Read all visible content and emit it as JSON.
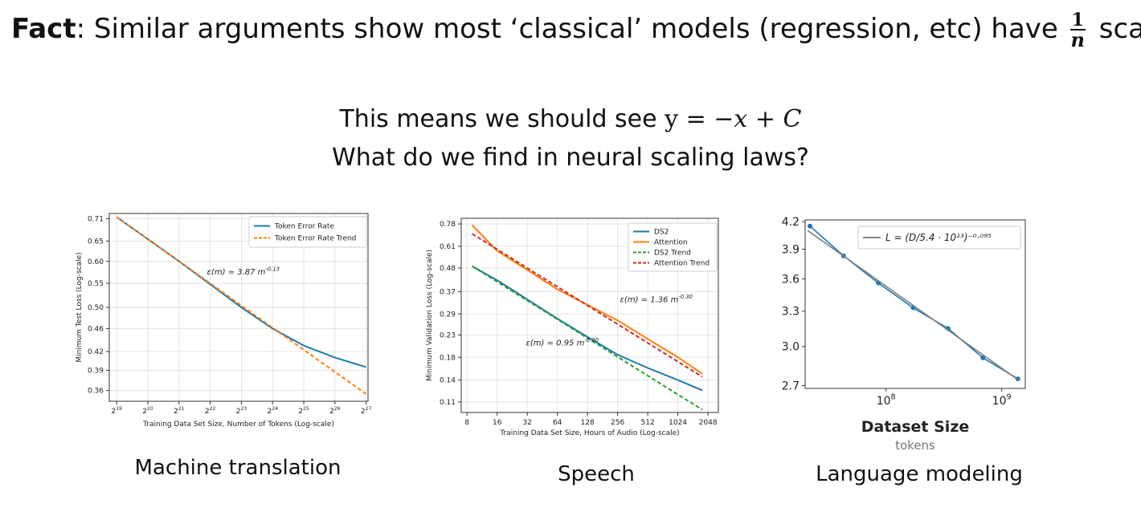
{
  "slide": {
    "fact_label": "Fact",
    "fact_text": ": Similar arguments show most ‘classical’ models (regression, etc) have ",
    "frac_num": "1",
    "frac_den": "n",
    "fact_tail": " scaling",
    "line1_text": "This means we should see ",
    "line1_math": "y = −",
    "line1_x": "x",
    "line1_plus": " + ",
    "line1_c": "C",
    "line2": "What do we find in neural scaling laws?"
  },
  "captions": [
    "Machine translation",
    "Speech",
    "Language modeling"
  ],
  "chart_data": [
    {
      "type": "line",
      "x_scale": "log2",
      "y_scale": "log",
      "xlabel": "Training Data Set Size, Number of Tokens (Log-scale)",
      "ylabel": "Minimum Test Loss (Log-scale)",
      "xlim": [
        445000,
        140000000
      ],
      "ylim": [
        0.345,
        0.725
      ],
      "grid": true,
      "legend": "top-right",
      "x_ticks": [
        524288,
        1048576,
        2097152,
        4194304,
        8388608,
        16777216,
        33554432,
        67108864,
        134217728
      ],
      "x_tick_labels": [
        [
          "2",
          "19"
        ],
        [
          "2",
          "20"
        ],
        [
          "2",
          "21"
        ],
        [
          "2",
          "22"
        ],
        [
          "2",
          "23"
        ],
        [
          "2",
          "24"
        ],
        [
          "2",
          "25"
        ],
        [
          "2",
          "26"
        ],
        [
          "2",
          "27"
        ]
      ],
      "y_ticks": [
        0.71,
        0.65,
        0.6,
        0.55,
        0.5,
        0.46,
        0.42,
        0.39,
        0.36
      ],
      "y_tick_labels": [
        "0.71",
        "0.65",
        "0.60",
        "0.55",
        "0.50",
        "0.46",
        "0.42",
        "0.39",
        "0.36"
      ],
      "series": [
        {
          "name": "Token Error Rate",
          "color": "#1f77b4",
          "dash": false,
          "x": [
            524288,
            1048576,
            2097152,
            4194304,
            8388608,
            16777216,
            33554432,
            67108864,
            134217728
          ],
          "y": [
            0.715,
            0.655,
            0.6,
            0.548,
            0.5,
            0.46,
            0.43,
            0.41,
            0.395
          ]
        },
        {
          "name": "Token Error Rate Trend",
          "color": "#ff7f0e",
          "dash": true,
          "x": [
            524288,
            134217728
          ],
          "y": [
            0.715,
            0.355
          ]
        }
      ],
      "annotations": [
        {
          "text": "ε(m) = 3.87 m",
          "sup": "-0.13",
          "x": 3900000,
          "y": 0.57
        }
      ]
    },
    {
      "type": "line",
      "x_scale": "log2",
      "y_scale": "log",
      "xlabel": "Training Data Set Size, Hours of Audio (Log-scale)",
      "ylabel": "Minimum Validation Loss (Log-scale)",
      "xlim": [
        7,
        2600
      ],
      "ylim": [
        0.098,
        0.83
      ],
      "grid": true,
      "legend": "top-right",
      "x_ticks": [
        8,
        16,
        32,
        64,
        128,
        256,
        512,
        1024,
        2048
      ],
      "x_tick_labels": [
        "8",
        "16",
        "32",
        "64",
        "128",
        "256",
        "512",
        "1024",
        "2048"
      ],
      "y_ticks": [
        0.78,
        0.61,
        0.48,
        0.37,
        0.29,
        0.23,
        0.18,
        0.14,
        0.11
      ],
      "y_tick_labels": [
        "0.78",
        "0.61",
        "0.48",
        "0.37",
        "0.29",
        "0.23",
        "0.18",
        "0.14",
        "0.11"
      ],
      "series": [
        {
          "name": "DS2",
          "color": "#1f77b4",
          "dash": false,
          "x": [
            9,
            16,
            32,
            64,
            128,
            256,
            512,
            1024,
            1800
          ],
          "y": [
            0.49,
            0.42,
            0.34,
            0.275,
            0.225,
            0.185,
            0.16,
            0.14,
            0.125
          ]
        },
        {
          "name": "Attention",
          "color": "#ff7f0e",
          "dash": false,
          "x": [
            9,
            16,
            32,
            64,
            128,
            256,
            512,
            1024,
            1800
          ],
          "y": [
            0.77,
            0.58,
            0.47,
            0.38,
            0.32,
            0.27,
            0.22,
            0.18,
            0.15
          ]
        },
        {
          "name": "DS2 Trend",
          "color": "#2ca02c",
          "dash": true,
          "x": [
            9,
            1800
          ],
          "y": [
            0.49,
            0.101
          ]
        },
        {
          "name": "Attention Trend",
          "color": "#d62728",
          "dash": true,
          "x": [
            9,
            1800
          ],
          "y": [
            0.7,
            0.145
          ]
        }
      ],
      "annotations": [
        {
          "text": "ε(m) = 1.36 m",
          "sup": "-0.30",
          "x": 270,
          "y": 0.33
        },
        {
          "text": "ε(m) = 0.95 m",
          "sup": "-0.30",
          "x": 31,
          "y": 0.205
        }
      ]
    },
    {
      "type": "line",
      "x_scale": "log10",
      "y_scale": "log",
      "xlabel": "Dataset Size",
      "xsub": "tokens",
      "ylabel": "",
      "xlim": [
        20000000,
        1600000000
      ],
      "ylim": [
        2.68,
        4.22
      ],
      "grid": false,
      "legend": "top-left",
      "x_ticks": [
        100000000,
        1000000000
      ],
      "x_tick_labels": [
        [
          "10",
          "8"
        ],
        [
          "10",
          "9"
        ]
      ],
      "y_ticks": [
        4.2,
        3.9,
        3.6,
        3.3,
        3.0,
        2.7
      ],
      "y_tick_labels": [
        "4.2",
        "3.9",
        "3.6",
        "3.3",
        "3.0",
        "2.7"
      ],
      "series": [
        {
          "name": "",
          "color": "#1f77b4",
          "dash": false,
          "markers": true,
          "x": [
            22000000,
            43000000,
            86000000,
            172000000,
            344000000,
            688000000,
            1380000000
          ],
          "y": [
            4.15,
            3.83,
            3.56,
            3.33,
            3.15,
            2.91,
            2.75
          ]
        },
        {
          "name": "L = (D/5.4 · 10¹³)⁻⁰·⁰⁹⁵",
          "color": "#808080",
          "dash": false,
          "x": [
            21000000,
            1400000000
          ],
          "y": [
            4.1,
            2.74
          ]
        }
      ]
    }
  ]
}
